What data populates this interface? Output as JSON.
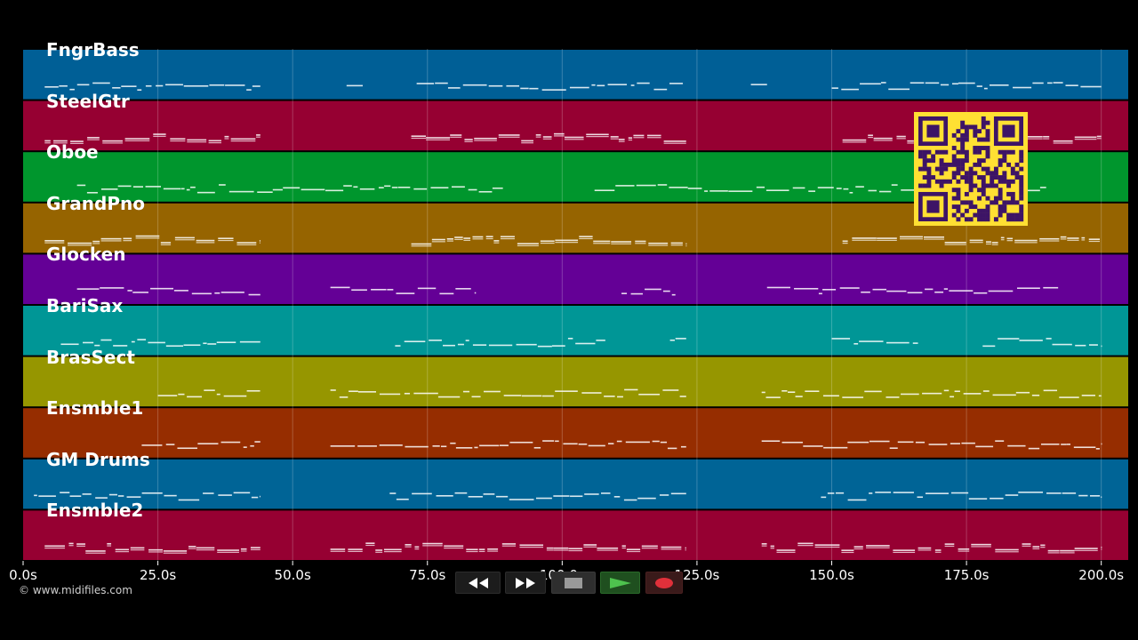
{
  "background": "#000000",
  "tracks": [
    {
      "name": "FngrBass",
      "color": "#005f96"
    },
    {
      "name": "SteelGtr",
      "color": "#960032"
    },
    {
      "name": "Oboe",
      "color": "#00962d"
    },
    {
      "name": "GrandPno",
      "color": "#966400"
    },
    {
      "name": "Glocken",
      "color": "#640096"
    },
    {
      "name": "BariSax",
      "color": "#009696"
    },
    {
      "name": "BrasSect",
      "color": "#969600"
    },
    {
      "name": "Ensmble1",
      "color": "#962d00"
    },
    {
      "name": "GM Drums",
      "color": "#006496"
    },
    {
      "name": "Ensmble2",
      "color": "#960032"
    }
  ],
  "time_axis": {
    "ticks": [
      "0.0s",
      "25.0s",
      "50.0s",
      "75.0s",
      "100.0s",
      "125.0s",
      "150.0s",
      "175.0s",
      "200.0s"
    ],
    "tick_values_seconds": [
      0,
      25,
      50,
      75,
      100,
      125,
      150,
      175,
      200
    ],
    "max_seconds": 205
  },
  "copyright": "© www.midifiles.com",
  "transport": {
    "rewind_icon": "rewind-icon",
    "fast_forward_icon": "fast-forward-icon",
    "stop_icon": "stop-icon",
    "play_icon": "play-icon",
    "record_icon": "record-icon",
    "play_color": "#4ec24e",
    "record_color": "#e0303a"
  },
  "qr_code": {
    "color": "#3d1466",
    "background": "#ffe033"
  }
}
